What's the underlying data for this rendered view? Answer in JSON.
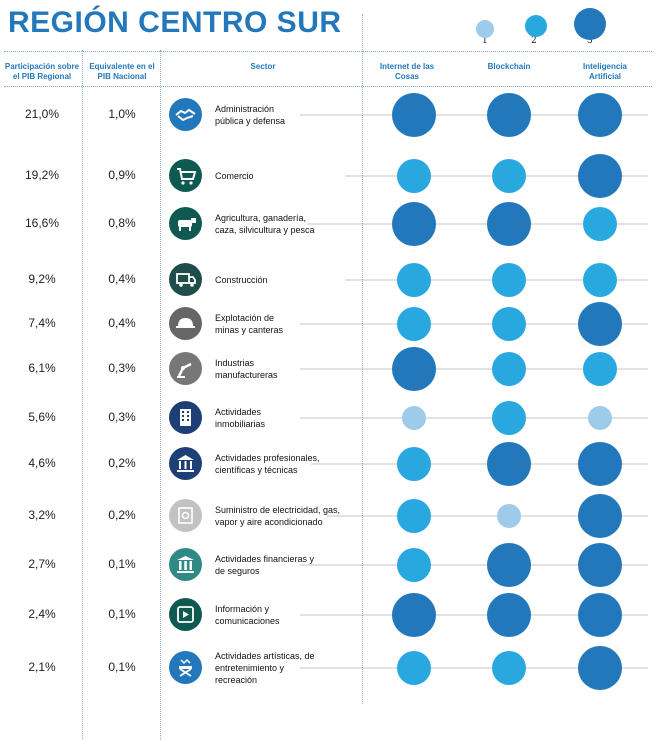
{
  "title": "REGIÓN CENTRO SUR",
  "headers": {
    "participacion": "Participación sobre el PIB Regional",
    "equivalente": "Equivalente en el PIB Nacional",
    "sector": "Sector",
    "internet": "Internet de las Cosas",
    "blockchain": "Blockchain",
    "ia": "Inteligencia Artificial"
  },
  "legend": [
    "1",
    "2",
    "3"
  ],
  "colors": {
    "level1": "#9fcbeb",
    "level2": "#29a8e0",
    "level3": "#2378bb",
    "accent": "#2378bb"
  },
  "chart_data": {
    "type": "table",
    "columns": [
      "Internet de las Cosas",
      "Blockchain",
      "Inteligencia Artificial"
    ],
    "rows": [
      {
        "sector": "Administración pública y defensa",
        "regional": "21,0%",
        "nacional": "1,0%",
        "levels": [
          3,
          3,
          3
        ],
        "icon": "handshake-icon",
        "icon_color": "#2378bb"
      },
      {
        "sector": "Comercio",
        "regional": "19,2%",
        "nacional": "0,9%",
        "levels": [
          2,
          2,
          3
        ],
        "icon": "shopping-cart-icon",
        "icon_color": "#0f5a50"
      },
      {
        "sector": "Agricultura, ganadería, caza, silvicultura y pesca",
        "regional": "16,6%",
        "nacional": "0,8%",
        "levels": [
          3,
          3,
          2
        ],
        "icon": "cow-icon",
        "icon_color": "#0f5a50"
      },
      {
        "sector": "Construcción",
        "regional": "9,2%",
        "nacional": "0,4%",
        "levels": [
          2,
          2,
          2
        ],
        "icon": "truck-icon",
        "icon_color": "#1f4e4a"
      },
      {
        "sector": "Explotación de minas y canteras",
        "regional": "7,4%",
        "nacional": "0,4%",
        "levels": [
          2,
          2,
          3
        ],
        "icon": "helmet-icon",
        "icon_color": "#666666"
      },
      {
        "sector": "Industrias manufactureras",
        "regional": "6,1%",
        "nacional": "0,3%",
        "levels": [
          3,
          2,
          2
        ],
        "icon": "robot-arm-icon",
        "icon_color": "#777777"
      },
      {
        "sector": "Actividades inmobiliarias",
        "regional": "5,6%",
        "nacional": "0,3%",
        "levels": [
          1,
          2,
          1
        ],
        "icon": "building-icon",
        "icon_color": "#1d3f75"
      },
      {
        "sector": "Actividades profesionales, científicas y técnicas",
        "regional": "4,6%",
        "nacional": "0,2%",
        "levels": [
          2,
          3,
          3
        ],
        "icon": "institution-icon",
        "icon_color": "#1d3f75"
      },
      {
        "sector": "Suministro de electricidad, gas, vapor y aire acondicionado",
        "regional": "3,2%",
        "nacional": "0,2%",
        "levels": [
          2,
          1,
          3
        ],
        "icon": "power-plant-icon",
        "icon_color": "#c2c2c2"
      },
      {
        "sector": "Actividades financieras y de seguros",
        "regional": "2,7%",
        "nacional": "0,1%",
        "levels": [
          2,
          3,
          3
        ],
        "icon": "columns-icon",
        "icon_color": "#2f8a86"
      },
      {
        "sector": "Información y comunicaciones",
        "regional": "2,4%",
        "nacional": "0,1%",
        "levels": [
          3,
          3,
          3
        ],
        "icon": "video-icon",
        "icon_color": "#0f5a50"
      },
      {
        "sector": "Actividades artísticas, de entretenimiento y recreación",
        "regional": "2,1%",
        "nacional": "0,1%",
        "levels": [
          2,
          2,
          3
        ],
        "icon": "director-chair-icon",
        "icon_color": "#2378bb"
      }
    ]
  }
}
